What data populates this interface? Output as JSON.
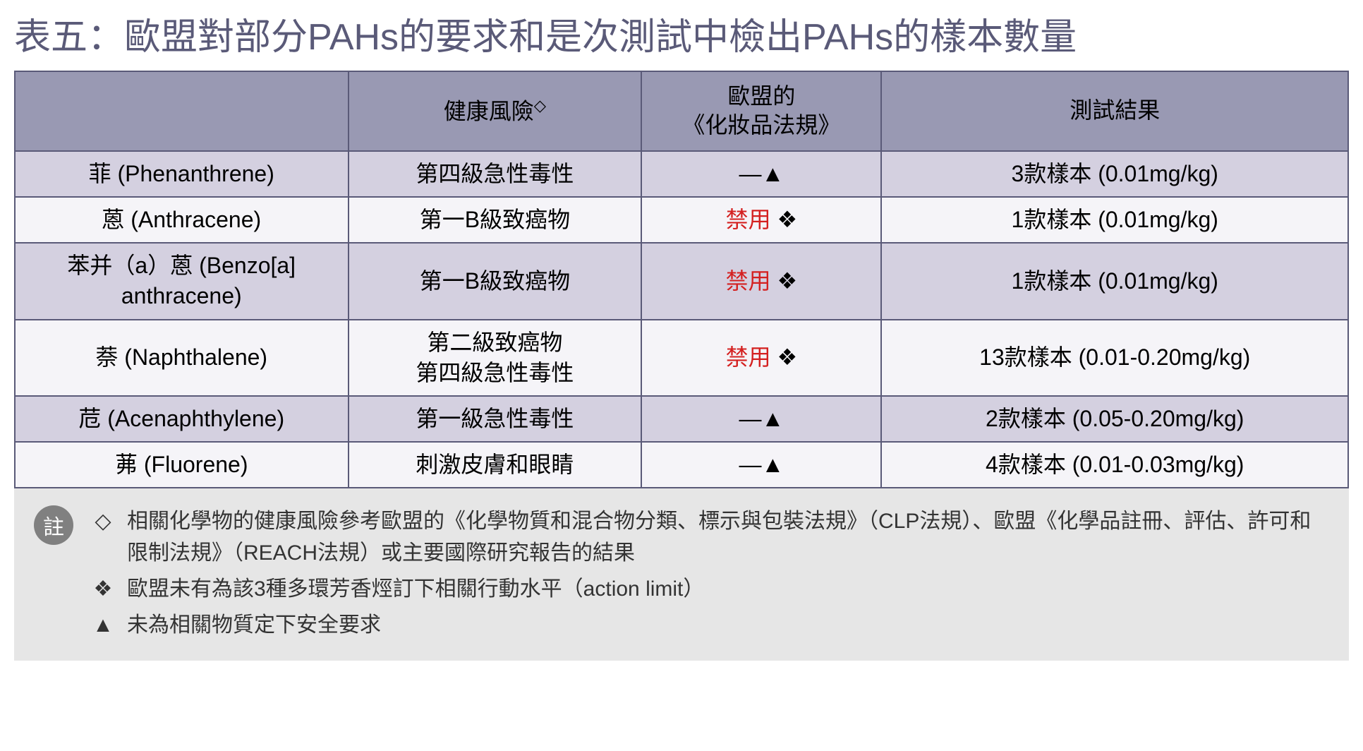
{
  "title": "表五：歐盟對部分PAHs的要求和是次測試中檢出PAHs的樣本數量",
  "headers": {
    "risk": "健康風險",
    "risk_sym": "◇",
    "eu": "歐盟的\n《化妝品法規》",
    "result": "測試結果"
  },
  "symbols": {
    "dash_triangle": "—▲",
    "ban": "禁用",
    "ban_sym": "❖"
  },
  "rows": [
    {
      "name": "菲 (Phenanthrene)",
      "risk": "第四級急性毒性",
      "eu_type": "dash",
      "result": "3款樣本 (0.01mg/kg)",
      "shade": true
    },
    {
      "name": "蒽 (Anthracene)",
      "risk": "第一B級致癌物",
      "eu_type": "ban",
      "result": "1款樣本 (0.01mg/kg)",
      "shade": false
    },
    {
      "name": "苯并（a）蒽 (Benzo[a] anthracene)",
      "risk": "第一B級致癌物",
      "eu_type": "ban",
      "result": "1款樣本 (0.01mg/kg)",
      "shade": true
    },
    {
      "name": "萘 (Naphthalene)",
      "risk": "第二級致癌物\n第四級急性毒性",
      "eu_type": "ban",
      "result": "13款樣本 (0.01-0.20mg/kg)",
      "shade": false
    },
    {
      "name": "苊 (Acenaphthylene)",
      "risk": "第一級急性毒性",
      "eu_type": "dash",
      "result": "2款樣本 (0.05-0.20mg/kg)",
      "shade": true
    },
    {
      "name": "茀 (Fluorene)",
      "risk": "刺激皮膚和眼睛",
      "eu_type": "dash",
      "result": "4款樣本 (0.01-0.03mg/kg)",
      "shade": false
    }
  ],
  "notes": {
    "badge": "註",
    "items": [
      {
        "sym": "◇",
        "text": "相關化學物的健康風險參考歐盟的《化學物質和混合物分類、標示與包裝法規》（CLP法規）、歐盟《化學品註冊、評估、許可和限制法規》（REACH法規）或主要國際研究報告的結果"
      },
      {
        "sym": "❖",
        "text": "歐盟未有為該3種多環芳香烴訂下相關行動水平（action limit）"
      },
      {
        "sym": "▲",
        "text": "未為相關物質定下安全要求"
      }
    ]
  },
  "style": {
    "title_color": "#5a5a78",
    "header_bg": "#9999b3",
    "border_color": "#5a5a78",
    "shade_bg": "#d4d0e0",
    "light_bg": "#f5f4f8",
    "ban_color": "#d42020",
    "notes_bg": "#e6e6e6",
    "badge_bg": "#808080"
  }
}
